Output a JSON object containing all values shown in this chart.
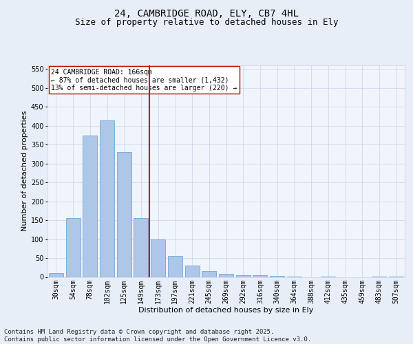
{
  "title1": "24, CAMBRIDGE ROAD, ELY, CB7 4HL",
  "title2": "Size of property relative to detached houses in Ely",
  "xlabel": "Distribution of detached houses by size in Ely",
  "ylabel": "Number of detached properties",
  "categories": [
    "30sqm",
    "54sqm",
    "78sqm",
    "102sqm",
    "125sqm",
    "149sqm",
    "173sqm",
    "197sqm",
    "221sqm",
    "245sqm",
    "269sqm",
    "292sqm",
    "316sqm",
    "340sqm",
    "364sqm",
    "388sqm",
    "412sqm",
    "435sqm",
    "459sqm",
    "483sqm",
    "507sqm"
  ],
  "values": [
    10,
    155,
    375,
    415,
    330,
    155,
    100,
    55,
    30,
    15,
    8,
    4,
    4,
    2,
    1,
    0,
    1,
    0,
    0,
    1,
    1
  ],
  "bar_color": "#aec6e8",
  "bar_edge_color": "#5a9fd4",
  "vline_color": "#cc0000",
  "annotation_text": "24 CAMBRIDGE ROAD: 166sqm\n← 87% of detached houses are smaller (1,432)\n13% of semi-detached houses are larger (220) →",
  "annotation_box_color": "#ffffff",
  "annotation_box_edge": "#cc0000",
  "ylim": [
    0,
    560
  ],
  "yticks": [
    0,
    50,
    100,
    150,
    200,
    250,
    300,
    350,
    400,
    450,
    500,
    550
  ],
  "bg_color": "#e8eef7",
  "plot_bg_color": "#f0f4fb",
  "footer": "Contains HM Land Registry data © Crown copyright and database right 2025.\nContains public sector information licensed under the Open Government Licence v3.0.",
  "title_fontsize": 10,
  "subtitle_fontsize": 9,
  "axis_label_fontsize": 8,
  "tick_fontsize": 7,
  "footer_fontsize": 6.5
}
